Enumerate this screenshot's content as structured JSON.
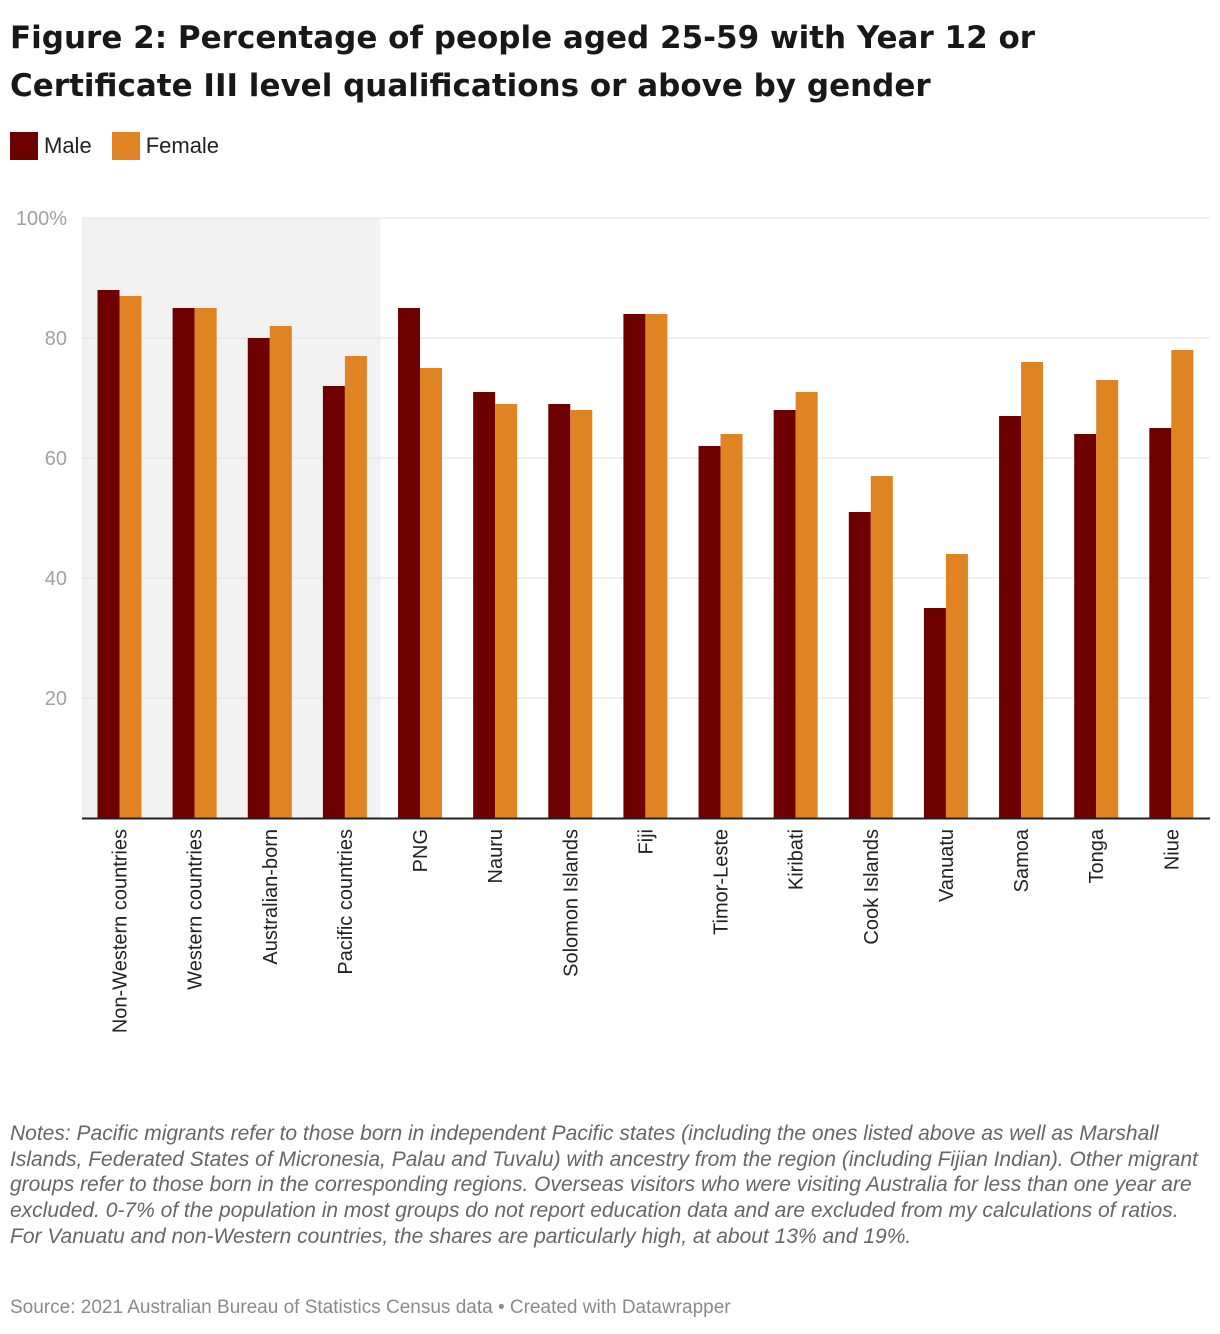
{
  "title": "Figure 2: Percentage of people aged 25-59 with Year 12 or Certificate III level qualifications or above by gender",
  "legend": [
    {
      "label": "Male",
      "color": "#6e0000"
    },
    {
      "label": "Female",
      "color": "#e08322"
    }
  ],
  "chart_data": {
    "type": "bar",
    "title": "Figure 2: Percentage of people aged 25-59 with Year 12 or Certificate III level qualifications or above by gender",
    "xlabel": "",
    "ylabel": "",
    "ylim": [
      0,
      100
    ],
    "yticks": [
      20,
      40,
      60,
      80,
      100
    ],
    "ytick_labels": [
      "20",
      "40",
      "60",
      "80",
      "100%"
    ],
    "grid": true,
    "legend_position": "top-left",
    "highlighted_categories": [
      "Non-Western countries",
      "Western countries",
      "Australian-born",
      "Pacific countries"
    ],
    "categories": [
      "Non-Western countries",
      "Western countries",
      "Australian-born",
      "Pacific countries",
      "PNG",
      "Nauru",
      "Solomon Islands",
      "Fiji",
      "Timor-Leste",
      "Kiribati",
      "Cook Islands",
      "Vanuatu",
      "Samoa",
      "Tonga",
      "Niue"
    ],
    "series": [
      {
        "name": "Male",
        "color": "#6e0000",
        "values": [
          88,
          85,
          80,
          72,
          85,
          71,
          69,
          84,
          62,
          68,
          51,
          35,
          67,
          64,
          65
        ]
      },
      {
        "name": "Female",
        "color": "#e08322",
        "values": [
          87,
          85,
          82,
          77,
          75,
          69,
          68,
          84,
          64,
          71,
          57,
          44,
          76,
          73,
          78
        ]
      }
    ]
  },
  "notes": "Notes: Pacific migrants refer to those born in independent Pacific states (including the ones listed above as well as Marshall Islands, Federated States of Micronesia, Palau and Tuvalu) with ancestry from the region (including Fijian Indian). Other migrant groups refer to those born in the corresponding regions. Overseas visitors who were visiting Australia for less than one year are excluded. 0-7% of the population in most groups do not report education data and are excluded from my calculations of ratios. For Vanuatu and non-Western countries, the shares are particularly high, at about 13% and 19%.",
  "source": "Source: 2021 Australian Bureau of Statistics Census data • Created with Datawrapper"
}
